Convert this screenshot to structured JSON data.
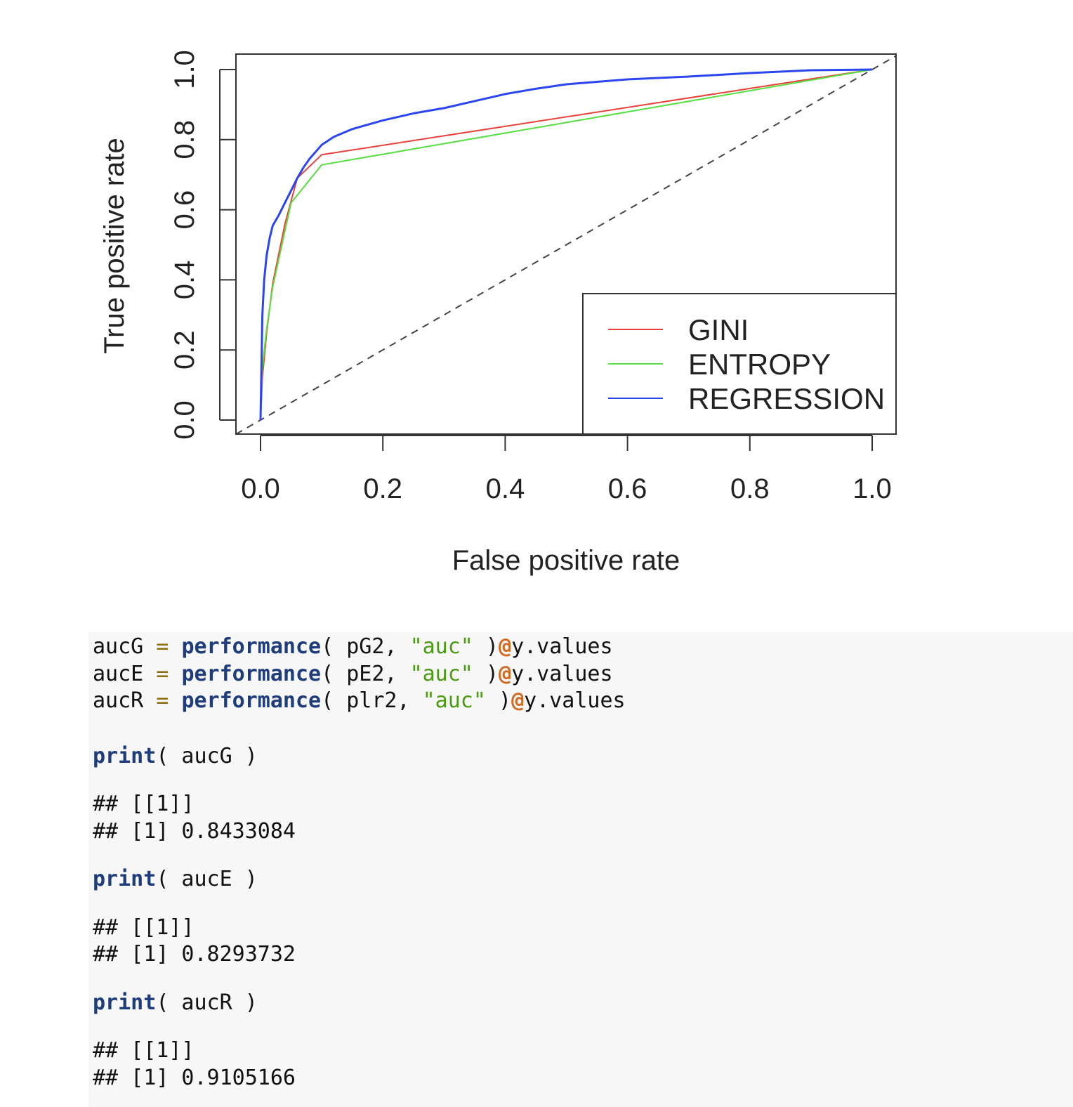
{
  "chart_data": {
    "type": "line",
    "title": "",
    "xlabel": "False positive rate",
    "ylabel": "True positive rate",
    "xlim": [
      0,
      1
    ],
    "ylim": [
      0,
      1
    ],
    "xticks": [
      "0.0",
      "0.2",
      "0.4",
      "0.6",
      "0.8",
      "1.0"
    ],
    "yticks": [
      "0.0",
      "0.2",
      "0.4",
      "0.6",
      "0.8",
      "1.0"
    ],
    "legend_position": "bottom-right",
    "grid": false,
    "reference_line": {
      "x": [
        0,
        1
      ],
      "y": [
        0,
        1
      ],
      "style": "dashed",
      "color": "#444444"
    },
    "series": [
      {
        "name": "GINI",
        "color": "#e8413a",
        "x": [
          0,
          0.003,
          0.01,
          0.02,
          0.04,
          0.06,
          0.1,
          1.0
        ],
        "y": [
          0,
          0.12,
          0.25,
          0.39,
          0.56,
          0.69,
          0.757,
          1.0
        ]
      },
      {
        "name": "ENTROPY",
        "color": "#55e040",
        "x": [
          0,
          0.003,
          0.01,
          0.02,
          0.04,
          0.05,
          0.1,
          1.0
        ],
        "y": [
          0,
          0.15,
          0.26,
          0.38,
          0.54,
          0.62,
          0.728,
          1.0
        ]
      },
      {
        "name": "REGRESSION",
        "color": "#2b46f0",
        "x": [
          0,
          0.003,
          0.006,
          0.01,
          0.015,
          0.02,
          0.03,
          0.04,
          0.05,
          0.06,
          0.07,
          0.08,
          0.1,
          0.12,
          0.15,
          0.18,
          0.2,
          0.25,
          0.3,
          0.35,
          0.4,
          0.45,
          0.5,
          0.55,
          0.6,
          0.7,
          0.8,
          0.9,
          1.0
        ],
        "y": [
          0,
          0.3,
          0.4,
          0.47,
          0.52,
          0.555,
          0.585,
          0.62,
          0.655,
          0.69,
          0.72,
          0.745,
          0.785,
          0.808,
          0.83,
          0.845,
          0.855,
          0.875,
          0.89,
          0.91,
          0.93,
          0.945,
          0.958,
          0.965,
          0.972,
          0.98,
          0.99,
          0.998,
          1.0
        ]
      }
    ]
  },
  "code": {
    "line1": {
      "var": "aucG",
      "eq": " = ",
      "fn": "performance",
      "args_a": "( pG2, ",
      "str": "\"auc\"",
      "args_b": " )",
      "at": "@",
      "tail": "y.values"
    },
    "line2": {
      "var": "aucE",
      "eq": " = ",
      "fn": "performance",
      "args_a": "( pE2, ",
      "str": "\"auc\"",
      "args_b": " )",
      "at": "@",
      "tail": "y.values"
    },
    "line3": {
      "var": "aucR",
      "eq": " = ",
      "fn": "performance",
      "args_a": "( plr2, ",
      "str": "\"auc\"",
      "args_b": " )",
      "at": "@",
      "tail": "y.values"
    },
    "print1": {
      "fn": "print",
      "args": "( aucG )"
    },
    "out1a": "## [[1]]",
    "out1b": "## [1] 0.8433084",
    "print2": {
      "fn": "print",
      "args": "( aucE )"
    },
    "out2a": "## [[1]]",
    "out2b": "## [1] 0.8293732",
    "print3": {
      "fn": "print",
      "args": "( aucR )"
    },
    "out3a": "## [[1]]",
    "out3b": "## [1] 0.9105166"
  }
}
